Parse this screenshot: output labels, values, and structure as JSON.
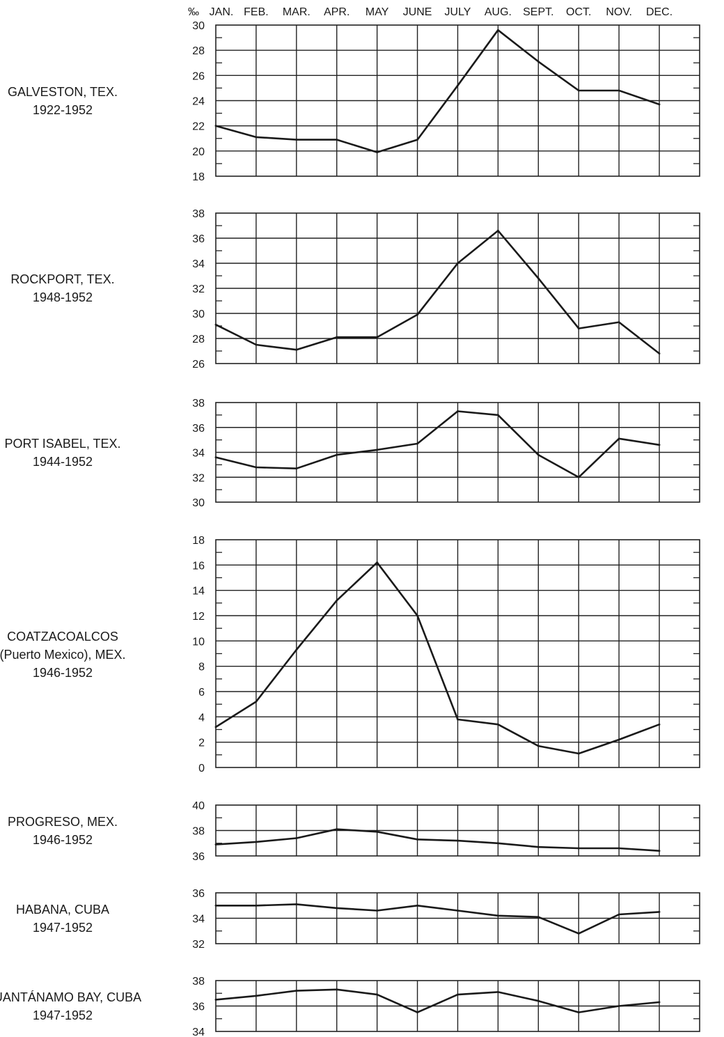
{
  "chart_data": {
    "type": "line",
    "unit_label": "‰",
    "months": [
      "JAN.",
      "FEB.",
      "MAR.",
      "APR.",
      "MAY",
      "JUNE",
      "JULY",
      "AUG.",
      "SEPT.",
      "OCT.",
      "NOV.",
      "DEC."
    ],
    "panels": [
      {
        "station": "GALVESTON, TEX.",
        "years": "1922-1952",
        "ylim": [
          18,
          30
        ],
        "yticks": [
          18,
          20,
          22,
          24,
          26,
          28,
          30
        ],
        "values": [
          22.0,
          21.1,
          20.9,
          20.9,
          19.9,
          20.9,
          25.2,
          29.6,
          27.1,
          24.8,
          24.8,
          23.7
        ]
      },
      {
        "station": "ROCKPORT, TEX.",
        "years": "1948-1952",
        "ylim": [
          26,
          38
        ],
        "yticks": [
          26,
          28,
          30,
          32,
          34,
          36,
          38
        ],
        "values": [
          29.1,
          27.5,
          27.1,
          28.1,
          28.1,
          29.9,
          34.0,
          36.6,
          32.8,
          28.8,
          29.3,
          26.8
        ]
      },
      {
        "station": "PORT ISABEL, TEX.",
        "years": "1944-1952",
        "ylim": [
          30,
          38
        ],
        "yticks": [
          30,
          32,
          34,
          36,
          38
        ],
        "values": [
          33.6,
          32.8,
          32.7,
          33.8,
          34.2,
          34.7,
          37.3,
          37.0,
          33.8,
          32.0,
          35.1,
          34.6
        ]
      },
      {
        "station": "COATZACOALCOS",
        "station_line2": "(Puerto Mexico), MEX.",
        "years": "1946-1952",
        "ylim": [
          0,
          18
        ],
        "yticks": [
          0,
          2,
          4,
          6,
          8,
          10,
          12,
          14,
          16,
          18
        ],
        "values": [
          3.2,
          5.2,
          9.3,
          13.2,
          16.2,
          12.0,
          3.8,
          3.4,
          1.7,
          1.1,
          2.2,
          3.4
        ]
      },
      {
        "station": "PROGRESO, MEX.",
        "years": "1946-1952",
        "ylim": [
          36,
          40
        ],
        "yticks": [
          36,
          38,
          40
        ],
        "values": [
          36.9,
          37.1,
          37.4,
          38.1,
          37.9,
          37.3,
          37.2,
          37.0,
          36.7,
          36.6,
          36.6,
          36.4
        ]
      },
      {
        "station": "HABANA, CUBA",
        "years": "1947-1952",
        "ylim": [
          32,
          36
        ],
        "yticks": [
          32,
          34,
          36
        ],
        "values": [
          35.0,
          35.0,
          35.1,
          34.8,
          34.6,
          35.0,
          34.6,
          34.2,
          34.1,
          32.8,
          34.3,
          34.5
        ]
      },
      {
        "station": "GUANTÁNAMO BAY, CUBA",
        "years": "1947-1952",
        "ylim": [
          34,
          38
        ],
        "yticks": [
          34,
          36,
          38
        ],
        "values": [
          36.5,
          36.8,
          37.2,
          37.3,
          36.9,
          35.5,
          36.9,
          37.1,
          36.4,
          35.5,
          36.0,
          36.3
        ]
      }
    ]
  }
}
